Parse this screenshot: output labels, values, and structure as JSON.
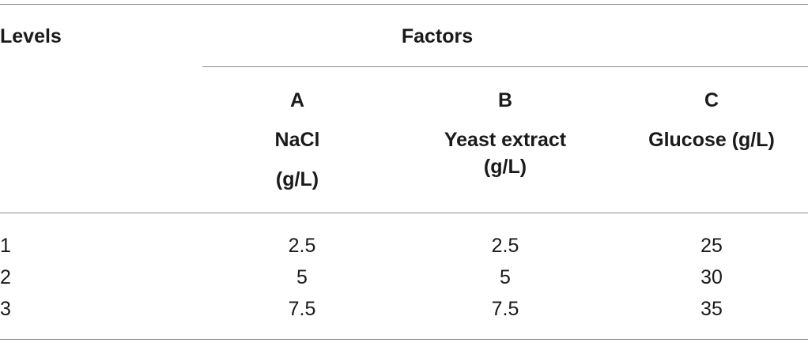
{
  "table": {
    "header": {
      "levels_label": "Levels",
      "factors_label": "Factors",
      "columns": [
        {
          "letter": "A",
          "name": "NaCl",
          "unit": "(g/L)"
        },
        {
          "letter": "B",
          "name": "Yeast extract",
          "unit": "(g/L)"
        },
        {
          "letter": "C",
          "name": "Glucose (g/L)",
          "unit": ""
        }
      ]
    },
    "rows": [
      {
        "level": "1",
        "a": "2.5",
        "b": "2.5",
        "c": "25"
      },
      {
        "level": "2",
        "a": "5",
        "b": "5",
        "c": "30"
      },
      {
        "level": "3",
        "a": "7.5",
        "b": "7.5",
        "c": "35"
      }
    ]
  }
}
